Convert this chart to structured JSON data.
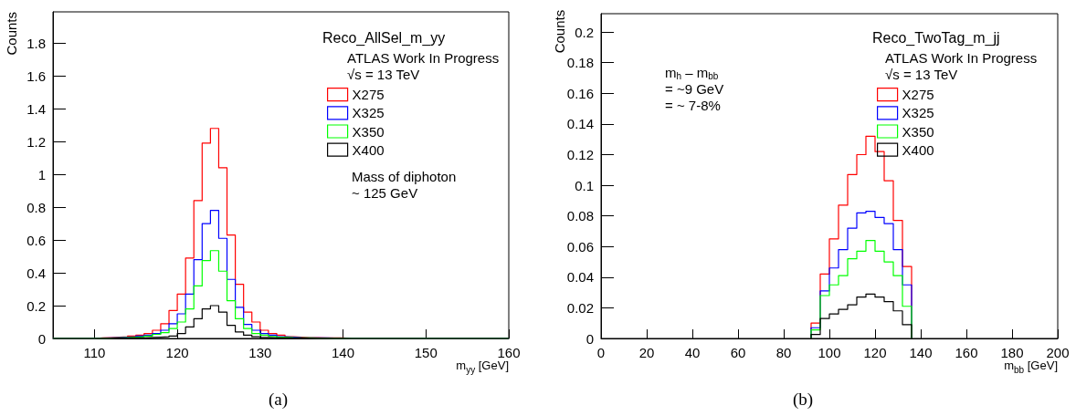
{
  "chart_data": [
    {
      "type": "histogram",
      "legend_title": "Reco_AllSel_m_yy",
      "xlabel": "m$_{yy}$ [GeV]",
      "ylabel": "Counts",
      "annotations": [
        "ATLAS Work In Progress",
        "√s = 13 TeV",
        "Mass of diphoton\n~ 125 GeV",
        "(a)"
      ],
      "bins": [
        105,
        106,
        107,
        108,
        109,
        110,
        111,
        112,
        113,
        114,
        115,
        116,
        117,
        118,
        119,
        120,
        121,
        122,
        123,
        124,
        125,
        126,
        127,
        128,
        129,
        130,
        131,
        132,
        133,
        134,
        135,
        136,
        137,
        138,
        139,
        140,
        141,
        142,
        143,
        144,
        145,
        146,
        147,
        148,
        149,
        150,
        151,
        152,
        153,
        154,
        155,
        156,
        157,
        158,
        159,
        160
      ],
      "series": [
        {
          "name": "X275",
          "color": "#ff0000",
          "values": [
            0,
            0,
            0,
            0,
            0,
            0.003,
            0.005,
            0.008,
            0.01,
            0.015,
            0.02,
            0.03,
            0.05,
            0.09,
            0.17,
            0.27,
            0.49,
            0.84,
            1.19,
            1.28,
            1.04,
            0.63,
            0.33,
            0.16,
            0.1,
            0.05,
            0.03,
            0.02,
            0.01,
            0.008,
            0.005,
            0.005,
            0.004,
            0.003,
            0.003,
            0,
            0,
            0,
            0,
            0,
            0,
            0,
            0,
            0,
            0,
            0,
            0,
            0,
            0,
            0,
            0,
            0,
            0,
            0,
            0
          ]
        },
        {
          "name": "X325",
          "color": "#0000ff",
          "values": [
            0,
            0,
            0,
            0,
            0,
            0.002,
            0.003,
            0.005,
            0.008,
            0.01,
            0.015,
            0.02,
            0.03,
            0.05,
            0.09,
            0.15,
            0.27,
            0.48,
            0.7,
            0.78,
            0.61,
            0.36,
            0.19,
            0.085,
            0.05,
            0.03,
            0.02,
            0.01,
            0.008,
            0.005,
            0.004,
            0.003,
            0.003,
            0.002,
            0.002,
            0,
            0,
            0,
            0,
            0,
            0,
            0,
            0,
            0,
            0,
            0,
            0,
            0,
            0,
            0,
            0,
            0,
            0,
            0,
            0
          ]
        },
        {
          "name": "X350",
          "color": "#00ff00",
          "values": [
            0,
            0,
            0,
            0,
            0,
            0.001,
            0.002,
            0.003,
            0.005,
            0.008,
            0.01,
            0.015,
            0.025,
            0.035,
            0.06,
            0.1,
            0.18,
            0.32,
            0.475,
            0.535,
            0.41,
            0.23,
            0.12,
            0.06,
            0.03,
            0.02,
            0.012,
            0.008,
            0.005,
            0.004,
            0.003,
            0.002,
            0.002,
            0.001,
            0.001,
            0,
            0,
            0,
            0,
            0,
            0,
            0,
            0,
            0,
            0,
            0,
            0,
            0,
            0,
            0,
            0,
            0,
            0,
            0,
            0
          ]
        },
        {
          "name": "X400",
          "color": "#000000",
          "values": [
            0,
            0,
            0,
            0,
            0,
            0.001,
            0.001,
            0.002,
            0.002,
            0.003,
            0.004,
            0.006,
            0.008,
            0.01,
            0.015,
            0.03,
            0.07,
            0.12,
            0.18,
            0.2,
            0.16,
            0.08,
            0.04,
            0.02,
            0.01,
            0.006,
            0.004,
            0.003,
            0.002,
            0.002,
            0.001,
            0.001,
            0.001,
            0.001,
            0.001,
            0,
            0,
            0,
            0,
            0,
            0,
            0,
            0,
            0,
            0,
            0,
            0,
            0,
            0,
            0,
            0,
            0,
            0,
            0,
            0
          ]
        }
      ],
      "xlim": [
        105,
        160
      ],
      "xticks": [
        110,
        120,
        130,
        140,
        150,
        160
      ],
      "ylim": [
        0,
        1.99
      ],
      "yticks": [
        0,
        0.2,
        0.4,
        0.6,
        0.8,
        1,
        1.2,
        1.4,
        1.6,
        1.8
      ],
      "legend": "top right",
      "grid": false
    },
    {
      "type": "histogram",
      "legend_title": "Reco_TwoTag_m_jj",
      "xlabel": "m$_{bb}$ [GeV]",
      "ylabel": "Counts",
      "annotations": [
        "ATLAS Work In Progress",
        "√s = 13 TeV",
        "m$_{h}$ – m$_{bb}$\n= ~9 GeV\n= ~ 7-8%",
        "(b)"
      ],
      "bins": [
        92,
        96,
        100,
        104,
        108,
        112,
        116,
        120,
        124,
        128,
        132,
        136
      ],
      "series": [
        {
          "name": "X275",
          "color": "#ff0000",
          "values": [
            0.01,
            0.042,
            0.065,
            0.087,
            0.107,
            0.12,
            0.132,
            0.122,
            0.103,
            0.077,
            0.047
          ]
        },
        {
          "name": "X325",
          "color": "#0000ff",
          "values": [
            0.007,
            0.031,
            0.046,
            0.058,
            0.072,
            0.082,
            0.083,
            0.079,
            0.075,
            0.058,
            0.035
          ]
        },
        {
          "name": "X350",
          "color": "#00ff00",
          "values": [
            0.0056,
            0.028,
            0.035,
            0.041,
            0.052,
            0.057,
            0.064,
            0.057,
            0.05,
            0.041,
            0.021
          ]
        },
        {
          "name": "X400",
          "color": "#000000",
          "values": [
            0.0026,
            0.013,
            0.016,
            0.019,
            0.022,
            0.027,
            0.029,
            0.027,
            0.024,
            0.018,
            0.009
          ]
        }
      ],
      "xlim": [
        0,
        200
      ],
      "xticks": [
        0,
        20,
        40,
        60,
        80,
        100,
        120,
        140,
        160,
        180,
        200
      ],
      "ylim": [
        0,
        0.212
      ],
      "yticks": [
        0,
        0.02,
        0.04,
        0.06,
        0.08,
        0.1,
        0.12,
        0.14,
        0.16,
        0.18,
        0.2
      ],
      "legend": "top right",
      "grid": false
    }
  ]
}
